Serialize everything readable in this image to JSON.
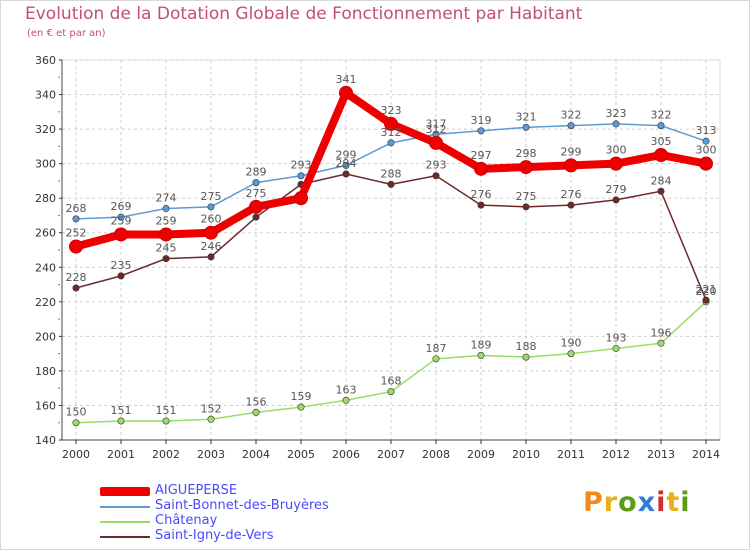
{
  "page": {
    "title": "Evolution de la Dotation Globale de Fonctionnement par Habitant",
    "subtitle": "(en € et par an)"
  },
  "logo": {
    "text": "Proxiti",
    "colors": [
      "#f08a1a",
      "#e8b014",
      "#5c9a18",
      "#2e7fd0",
      "#d02e2e",
      "#e8b014",
      "#5c9a18"
    ]
  },
  "chart_data": {
    "type": "line",
    "title": "Evolution de la Dotation Globale de Fonctionnement par Habitant",
    "subtitle": "(en € et par an)",
    "xlabel": "",
    "ylabel": "",
    "categories": [
      "2000",
      "2001",
      "2002",
      "2003",
      "2004",
      "2005",
      "2006",
      "2007",
      "2008",
      "2009",
      "2010",
      "2011",
      "2012",
      "2013",
      "2014"
    ],
    "ylim": [
      140,
      360
    ],
    "yticks": [
      140,
      160,
      180,
      200,
      220,
      240,
      260,
      280,
      300,
      320,
      340,
      360
    ],
    "grid": true,
    "legend_position": "bottom-left",
    "series": [
      {
        "name": "AIGUEPERSE",
        "color": "#ee0000",
        "values": [
          252,
          259,
          259,
          260,
          275,
          280,
          341,
          323,
          312,
          297,
          298,
          299,
          300,
          305,
          300
        ],
        "labels": [
          "252",
          "259",
          "259",
          "260",
          "275",
          "",
          "341",
          "323",
          "312",
          "297",
          "298",
          "299",
          "300",
          "305",
          "300"
        ],
        "highlight": true
      },
      {
        "name": "Saint-Bonnet-des-Bruyères",
        "color": "#5b9bd5",
        "values": [
          268,
          269,
          274,
          275,
          289,
          293,
          299,
          312,
          317,
          319,
          321,
          322,
          323,
          322,
          313
        ],
        "labels": [
          "268",
          "269",
          "274",
          "275",
          "289",
          "293",
          "299",
          "312",
          "317",
          "319",
          "321",
          "322",
          "323",
          "322",
          "313"
        ]
      },
      {
        "name": "Châtenay",
        "color": "#99dd66",
        "values": [
          150,
          151,
          151,
          152,
          156,
          159,
          163,
          168,
          187,
          189,
          188,
          190,
          193,
          196,
          220
        ],
        "labels": [
          "150",
          "151",
          "151",
          "152",
          "156",
          "159",
          "163",
          "168",
          "187",
          "189",
          "188",
          "190",
          "193",
          "196",
          "220"
        ]
      },
      {
        "name": "Saint-Igny-de-Vers",
        "color": "#6e2a2a",
        "values": [
          228,
          235,
          245,
          246,
          269,
          288,
          294,
          288,
          293,
          276,
          275,
          276,
          279,
          284,
          221
        ],
        "labels": [
          "228",
          "235",
          "245",
          "246",
          "",
          "",
          "294",
          "288",
          "293",
          "276",
          "275",
          "276",
          "279",
          "284",
          "221"
        ]
      }
    ]
  }
}
